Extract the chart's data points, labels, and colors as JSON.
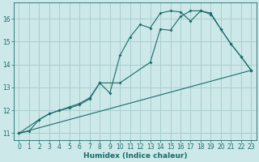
{
  "xlabel": "Humidex (Indice chaleur)",
  "bg_color": "#cce8e8",
  "grid_color": "#aacece",
  "line_color": "#1a6b6b",
  "xlim": [
    -0.5,
    23.5
  ],
  "ylim": [
    10.7,
    16.7
  ],
  "yticks": [
    11,
    12,
    13,
    14,
    15,
    16
  ],
  "xticks": [
    0,
    1,
    2,
    3,
    4,
    5,
    6,
    7,
    8,
    9,
    10,
    11,
    12,
    13,
    14,
    15,
    16,
    17,
    18,
    19,
    20,
    21,
    22,
    23
  ],
  "series1_x": [
    0,
    1,
    2,
    3,
    4,
    5,
    6,
    7,
    8,
    9,
    10,
    11,
    12,
    13,
    14,
    15,
    16,
    17,
    18,
    19,
    20,
    21,
    22,
    23
  ],
  "series1_y": [
    11.0,
    11.1,
    11.6,
    11.85,
    12.0,
    12.15,
    12.3,
    12.55,
    13.2,
    12.75,
    14.4,
    15.2,
    15.75,
    15.6,
    16.25,
    16.35,
    16.3,
    15.9,
    16.35,
    16.25,
    15.55,
    14.9,
    14.35,
    13.75
  ],
  "series2_x": [
    0,
    2,
    3,
    4,
    5,
    6,
    7,
    8,
    10,
    13,
    14,
    15,
    16,
    17,
    18,
    19,
    20,
    21,
    22,
    23
  ],
  "series2_y": [
    11.0,
    11.6,
    11.85,
    12.0,
    12.1,
    12.25,
    12.5,
    13.2,
    13.2,
    14.1,
    15.55,
    15.5,
    16.1,
    16.35,
    16.35,
    16.2,
    15.55,
    14.9,
    14.35,
    13.75
  ],
  "series3_x": [
    0,
    23
  ],
  "series3_y": [
    11.0,
    13.75
  ]
}
